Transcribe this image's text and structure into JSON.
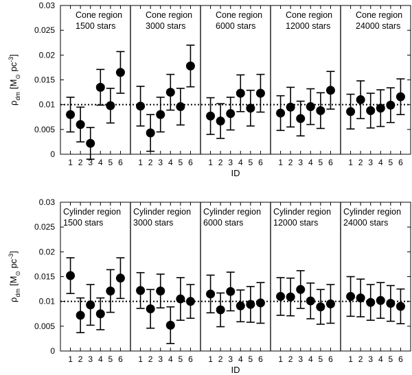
{
  "chart_data": [
    {
      "type": "scatter",
      "title": "",
      "xlabel": "ID",
      "ylabel": "ρdm [M☉ pc⁻³]",
      "ylabel_parts": {
        "symbol": "ρ",
        "sub": "dm",
        "open": "[M",
        "sun": "⊙",
        "unit": " pc",
        "sup": "-3",
        "close": "]"
      },
      "ylim": [
        0,
        0.03
      ],
      "yticks": [
        "0",
        "0.005",
        "0.01",
        "0.015",
        "0.02",
        "0.025",
        "0.03"
      ],
      "ytick_values": [
        0,
        0.005,
        0.01,
        0.015,
        0.02,
        0.025,
        0.03
      ],
      "reference_line": 0.01,
      "x_tick_labels": [
        "1",
        "2",
        "3",
        "4",
        "5",
        "6"
      ],
      "panels": [
        {
          "region": "Cone region",
          "stars": "1500 stars",
          "values": [
            0.008,
            0.006,
            0.0022,
            0.0135,
            0.0098,
            0.0165
          ],
          "errors": [
            0.0035,
            0.0035,
            0.0032,
            0.0036,
            0.0035,
            0.0042
          ]
        },
        {
          "region": "Cone region",
          "stars": "3000 stars",
          "values": [
            0.0097,
            0.0043,
            0.008,
            0.0125,
            0.0096,
            0.0178
          ],
          "errors": [
            0.004,
            0.0037,
            0.0035,
            0.0036,
            0.0037,
            0.0042
          ]
        },
        {
          "region": "Cone region",
          "stars": "6000 stars",
          "values": [
            0.0077,
            0.0067,
            0.0082,
            0.0123,
            0.0093,
            0.0123
          ],
          "errors": [
            0.0037,
            0.0035,
            0.0033,
            0.0037,
            0.0036,
            0.0038
          ]
        },
        {
          "region": "Cone region",
          "stars": "12000 stars",
          "values": [
            0.0083,
            0.0095,
            0.0072,
            0.0096,
            0.0088,
            0.0129
          ],
          "errors": [
            0.0035,
            0.004,
            0.0035,
            0.0036,
            0.0036,
            0.0038
          ]
        },
        {
          "region": "Cone region",
          "stars": "24000 stars",
          "values": [
            0.0086,
            0.011,
            0.0088,
            0.0093,
            0.0099,
            0.0116
          ],
          "errors": [
            0.0035,
            0.0038,
            0.0035,
            0.0037,
            0.0035,
            0.0036
          ]
        }
      ]
    },
    {
      "type": "scatter",
      "title": "",
      "xlabel": "ID",
      "ylabel": "ρdm [M☉ pc⁻³]",
      "ylabel_parts": {
        "symbol": "ρ",
        "sub": "dm",
        "open": "[M",
        "sun": "⊙",
        "unit": " pc",
        "sup": "-3",
        "close": "]"
      },
      "ylim": [
        0,
        0.03
      ],
      "yticks": [
        "0",
        "0.005",
        "0.01",
        "0.015",
        "0.02",
        "0.025",
        "0.03"
      ],
      "ytick_values": [
        0,
        0.005,
        0.01,
        0.015,
        0.02,
        0.025,
        0.03
      ],
      "reference_line": 0.01,
      "x_tick_labels": [
        "1",
        "2",
        "3",
        "4",
        "5",
        "6"
      ],
      "panels": [
        {
          "region": "Cylinder region",
          "stars": "1500 stars",
          "values": [
            0.0152,
            0.0072,
            0.0093,
            0.0075,
            0.0121,
            0.0147
          ],
          "errors": [
            0.0036,
            0.0035,
            0.0041,
            0.0032,
            0.0043,
            0.0041
          ]
        },
        {
          "region": "Cylinder region",
          "stars": "3000 stars",
          "values": [
            0.0122,
            0.0085,
            0.0121,
            0.0052,
            0.0105,
            0.01
          ],
          "errors": [
            0.0036,
            0.0039,
            0.0034,
            0.0037,
            0.0043,
            0.0034
          ]
        },
        {
          "region": "Cylinder region",
          "stars": "6000 stars",
          "values": [
            0.0115,
            0.0083,
            0.012,
            0.0091,
            0.0094,
            0.0097
          ],
          "errors": [
            0.0038,
            0.0034,
            0.0039,
            0.0032,
            0.0036,
            0.0041
          ]
        },
        {
          "region": "Cylinder region",
          "stars": "12000 stars",
          "values": [
            0.011,
            0.0109,
            0.0124,
            0.0101,
            0.0089,
            0.0095
          ],
          "errors": [
            0.0038,
            0.0038,
            0.0038,
            0.0036,
            0.0035,
            0.0039
          ]
        },
        {
          "region": "Cylinder region",
          "stars": "24000 stars",
          "values": [
            0.011,
            0.0107,
            0.0098,
            0.0102,
            0.0096,
            0.009
          ],
          "errors": [
            0.004,
            0.0038,
            0.0036,
            0.0036,
            0.0036,
            0.0035
          ]
        }
      ]
    }
  ]
}
